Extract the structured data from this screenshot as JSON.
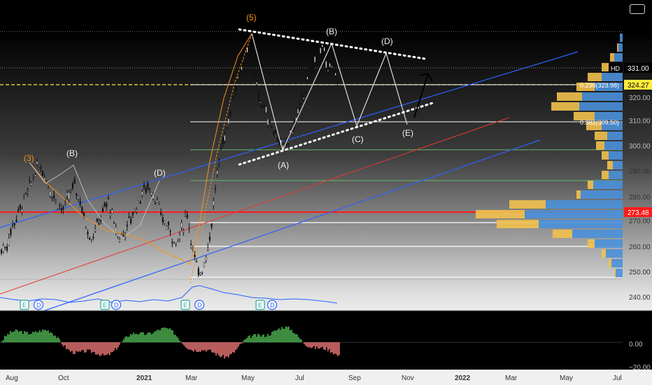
{
  "chart_data": {
    "type": "line",
    "price_axis": {
      "ticks": [
        "320.00",
        "310.00",
        "300.00",
        "290.00",
        "280.00",
        "270.00",
        "260.00",
        "250.00",
        "240.00"
      ],
      "ylim": [
        236,
        345
      ]
    },
    "oscillator_axis": {
      "ticks": [
        "0.00",
        "−20.00"
      ]
    },
    "time_axis": {
      "ticks": [
        "Aug",
        "Oct",
        "2021",
        "Mar",
        "May",
        "Jul",
        "Sep",
        "Nov",
        "2022",
        "Mar",
        "May",
        "Jul"
      ]
    },
    "badges": {
      "symbol": "HD",
      "last_price": "331.00",
      "level_yellow": "324.27",
      "level_red": "273.48"
    },
    "fib_labels": {
      "f236": "0.236(323.98)",
      "f382": "0.382(309.50)"
    },
    "wave_labels": {
      "w3": "(3)",
      "w5": "(5)",
      "b1": "(B)",
      "d1": "(D)",
      "a2": "(A)",
      "b2": "(B)",
      "c2": "(C)",
      "d2": "(D)",
      "e2": "(E)"
    },
    "event_markers": [
      "E",
      "D",
      "E",
      "D",
      "E",
      "D",
      "E",
      "D"
    ],
    "colors": {
      "wave_orange": "#f7931a",
      "channel_blue": "#2962ff",
      "channel_red": "#e53935",
      "level_yellow": "#ffeb3b",
      "profile_blue": "#4a90d9",
      "profile_yellow": "#f2c14e",
      "osc_green": "#4caf50",
      "osc_red": "#e57373"
    },
    "series": [
      {
        "price": [
          260,
          262,
          270,
          275,
          280,
          285,
          292,
          294,
          288,
          283,
          279,
          276,
          282,
          286,
          280,
          270,
          265,
          270,
          275,
          280,
          270,
          265,
          268,
          273,
          278,
          283,
          286,
          283,
          276,
          271,
          268,
          262,
          268,
          275,
          260,
          250,
          255,
          265,
          285,
          300,
          310,
          320,
          330,
          336,
          341,
          328,
          320,
          315,
          310,
          306,
          300,
          305,
          310,
          318,
          325,
          332,
          338,
          340,
          335,
          330
        ]
      }
    ],
    "projection": [
      341,
      309,
      341,
      309
    ]
  }
}
